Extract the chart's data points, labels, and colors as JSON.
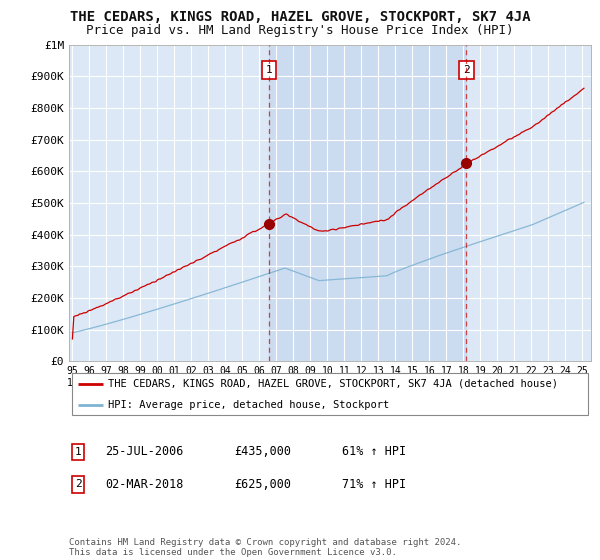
{
  "title": "THE CEDARS, KINGS ROAD, HAZEL GROVE, STOCKPORT, SK7 4JA",
  "subtitle": "Price paid vs. HM Land Registry's House Price Index (HPI)",
  "title_fontsize": 10,
  "subtitle_fontsize": 9,
  "background_color": "#ffffff",
  "plot_bg_color": "#dce8f5",
  "grid_color": "#ffffff",
  "sale1_date_num": 2006.56,
  "sale1_price": 435000,
  "sale2_date_num": 2018.17,
  "sale2_price": 625000,
  "sale1_label": "1",
  "sale2_label": "2",
  "sale1_date_str": "25-JUL-2006",
  "sale1_price_str": "£435,000",
  "sale1_hpi_str": "61% ↑ HPI",
  "sale2_date_str": "02-MAR-2018",
  "sale2_price_str": "£625,000",
  "sale2_hpi_str": "71% ↑ HPI",
  "legend_line1": "THE CEDARS, KINGS ROAD, HAZEL GROVE, STOCKPORT, SK7 4JA (detached house)",
  "legend_line2": "HPI: Average price, detached house, Stockport",
  "footer": "Contains HM Land Registry data © Crown copyright and database right 2024.\nThis data is licensed under the Open Government Licence v3.0.",
  "red_color": "#cc0000",
  "blue_color": "#7fb3d3",
  "shade_color": "#c8d8ee",
  "ylim": [
    0,
    1000000
  ],
  "xlim": [
    1994.8,
    2025.5
  ],
  "yticks": [
    0,
    100000,
    200000,
    300000,
    400000,
    500000,
    600000,
    700000,
    800000,
    900000,
    1000000
  ],
  "ytick_labels": [
    "£0",
    "£100K",
    "£200K",
    "£300K",
    "£400K",
    "£500K",
    "£600K",
    "£700K",
    "£800K",
    "£900K",
    "£1M"
  ],
  "xticks": [
    1995,
    1996,
    1997,
    1998,
    1999,
    2000,
    2001,
    2002,
    2003,
    2004,
    2005,
    2006,
    2007,
    2008,
    2009,
    2010,
    2011,
    2012,
    2013,
    2014,
    2015,
    2016,
    2017,
    2018,
    2019,
    2020,
    2021,
    2022,
    2023,
    2024,
    2025
  ],
  "xtick_labels": [
    "95",
    "96",
    "97",
    "98",
    "99",
    "00",
    "01",
    "02",
    "03",
    "04",
    "05",
    "06",
    "07",
    "08",
    "09",
    "10",
    "11",
    "12",
    "13",
    "14",
    "15",
    "16",
    "17",
    "18",
    "19",
    "20",
    "21",
    "22",
    "23",
    "24",
    "25"
  ]
}
